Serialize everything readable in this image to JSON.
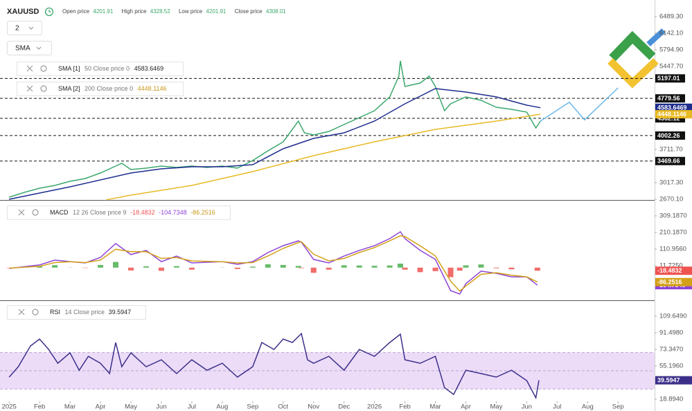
{
  "toolbar": {
    "symbol": "XAUUSD",
    "open_label": "Open price",
    "open": 4201.91,
    "high_label": "High price",
    "high": 4328.52,
    "low_label": "Low price",
    "low": 4201.91,
    "close_label": "Close price",
    "close": 4308.01,
    "interval": "2",
    "indicator": "SMA"
  },
  "chart_data": [
    {
      "type": "line",
      "xlim": [
        -0.3,
        21.2
      ],
      "ylim": [
        2655.6,
        6836.6
      ],
      "yticks": [
        {
          "value": 2670.1,
          "label": "2670.10"
        },
        {
          "value": 3017.3,
          "label": "3017.30"
        },
        {
          "value": 3711.7,
          "label": "3711.70"
        },
        {
          "value": 5447.7,
          "label": "5447.70"
        },
        {
          "value": 5794.9,
          "label": "5794.90"
        },
        {
          "value": 6142.1,
          "label": "6142.10"
        },
        {
          "value": 6489.3,
          "label": "6489.30"
        }
      ],
      "levels": [
        5197.01,
        4779.56,
        4362.12,
        4002.26,
        3469.66
      ],
      "level_color": "#111111",
      "series": [
        {
          "color": "#3aa76d",
          "x": [
            0,
            0.5,
            1,
            1.5,
            2,
            2.5,
            3,
            3.5,
            3.7,
            4,
            4.5,
            5,
            5.5,
            6,
            6.5,
            7,
            7.5,
            8,
            8.5,
            9,
            9.5,
            9.7,
            10,
            10.5,
            11,
            11.5,
            12,
            12.5,
            12.8,
            12.85,
            13,
            13.5,
            13.8,
            14,
            14.3,
            14.5,
            15,
            15.5,
            16,
            16.5,
            17,
            17.3,
            17.45
          ],
          "values": [
            2714,
            2815,
            2901,
            2959,
            3046,
            3104,
            3220,
            3364,
            3422,
            3292,
            3321,
            3364,
            3336,
            3364,
            3336,
            3364,
            3321,
            3480,
            3683,
            3871,
            4305,
            4059,
            4016,
            4088,
            4232,
            4377,
            4522,
            4811,
            5245,
            5563,
            5028,
            5101,
            5245,
            5028,
            4522,
            4667,
            4811,
            4739,
            4594,
            4551,
            4493,
            4160,
            4305
          ]
        },
        {
          "color": "#6bb8e8",
          "x": [
            17.45,
            18.4,
            18.9,
            20.0
          ],
          "values": [
            4305,
            4700,
            4330,
            5000
          ]
        },
        {
          "name": "SMA [1]",
          "params": "50 Close price 0",
          "color": "#1c2c8e",
          "last_tag": true,
          "x": [
            0,
            2,
            4,
            5,
            6,
            7,
            8,
            9,
            10,
            11,
            12,
            13,
            14,
            15,
            16,
            17,
            17.45
          ],
          "values": [
            2670,
            2930,
            3220,
            3307,
            3350,
            3350,
            3393,
            3726,
            3943,
            4059,
            4305,
            4667,
            4985,
            4912,
            4811,
            4638,
            4583.6469
          ]
        },
        {
          "name": "SMA [2]",
          "params": "200 Close price 0",
          "color": "#e8b923",
          "last_tag": true,
          "x": [
            3.2,
            4,
            6,
            8,
            10,
            12,
            14,
            16,
            17.45
          ],
          "values": [
            2660,
            2757,
            2959,
            3249,
            3582,
            3871,
            4131,
            4305,
            4448.1146
          ]
        }
      ]
    },
    {
      "type": "line",
      "title": "MACD",
      "params": "12 26 Close price 9",
      "xlim": [
        -0.3,
        21.2
      ],
      "ylim": [
        -195,
        400
      ],
      "yticks": [
        {
          "value": 11.725,
          "label": "11.7250"
        },
        {
          "value": 110.956,
          "label": "110.9560"
        },
        {
          "value": 210.187,
          "label": "210.1870"
        },
        {
          "value": 309.187,
          "label": "309.1870"
        }
      ],
      "series": [
        {
          "style": "bar",
          "color": "#4caf50",
          "negative_color": "#ef5350",
          "last_tag": true,
          "x": [
            0,
            1,
            1.5,
            2,
            2.5,
            3,
            3.5,
            4,
            4.5,
            5,
            5.5,
            6,
            7,
            7.5,
            8,
            8.5,
            9,
            9.5,
            9.6,
            10,
            10.5,
            11,
            11.5,
            12,
            12.5,
            12.85,
            13,
            13.5,
            14,
            14.5,
            14.8,
            15,
            15.5,
            16,
            16.5,
            17,
            17.35
          ],
          "values": [
            -2,
            8,
            15,
            1,
            -2,
            16,
            34,
            -17,
            8,
            -19,
            9,
            -12,
            1,
            -8,
            6,
            20,
            16,
            10,
            -3,
            -31,
            -12,
            14,
            13,
            11,
            13,
            24,
            -12,
            -27,
            -21,
            -57,
            -18,
            14,
            19,
            -4,
            -10,
            0,
            -18.4832
          ]
        },
        {
          "color": "#8e44d6",
          "last_tag": true,
          "x": [
            0,
            1,
            1.5,
            2,
            2.5,
            3,
            3.5,
            4,
            4.5,
            5,
            5.5,
            6,
            7,
            7.5,
            8,
            8.5,
            9,
            9.5,
            9.6,
            10,
            10.5,
            11,
            11.5,
            12,
            12.5,
            12.85,
            13,
            13.5,
            14,
            14.5,
            14.8,
            15,
            15.5,
            16,
            16.5,
            17,
            17.35
          ],
          "values": [
            -5,
            16,
            45,
            36,
            28,
            61,
            144,
            78,
            103,
            36,
            69,
            28,
            36,
            20,
            36,
            90,
            131,
            160,
            152,
            49,
            28,
            69,
            103,
            131,
            173,
            214,
            173,
            103,
            49,
            -137,
            -158,
            -96,
            -21,
            -34,
            -55,
            -55,
            -104.7348
          ]
        },
        {
          "color": "#d4a017",
          "last_tag": true,
          "x": [
            0,
            1,
            1.5,
            2,
            2.5,
            3,
            3.5,
            4,
            4.5,
            5,
            5.5,
            6,
            7,
            7.5,
            8,
            8.5,
            9,
            9.5,
            9.6,
            10,
            10.5,
            11,
            11.5,
            12,
            12.5,
            12.85,
            13,
            13.5,
            14,
            14.5,
            14.8,
            15,
            15.5,
            16,
            16.5,
            17,
            17.35
          ],
          "values": [
            -3,
            8,
            30,
            35,
            30,
            45,
            110,
            95,
            95,
            55,
            60,
            40,
            35,
            28,
            30,
            70,
            115,
            150,
            155,
            80,
            40,
            55,
            90,
            120,
            160,
            190,
            185,
            130,
            70,
            -80,
            -140,
            -110,
            -40,
            -30,
            -45,
            -55,
            -86.2516
          ]
        }
      ]
    },
    {
      "type": "line",
      "title": "RSI",
      "params": "14 Close price",
      "xlim": [
        -0.3,
        21.2
      ],
      "ylim": [
        16.6,
        126.3
      ],
      "yticks": [
        {
          "value": 18.894,
          "label": "18.8940"
        },
        {
          "value": 55.196,
          "label": "55.1960"
        },
        {
          "value": 73.347,
          "label": "73.3470"
        },
        {
          "value": 91.498,
          "label": "91.4980"
        },
        {
          "value": 109.649,
          "label": "109.6490"
        }
      ],
      "bands": [
        30,
        70
      ],
      "band_color": "#ecdcf8",
      "midline": 50,
      "xticks": [
        {
          "value": 0,
          "label": "2025"
        },
        {
          "value": 1,
          "label": "Feb"
        },
        {
          "value": 2,
          "label": "Mar"
        },
        {
          "value": 3,
          "label": "Apr"
        },
        {
          "value": 4,
          "label": "May"
        },
        {
          "value": 5,
          "label": "Jun"
        },
        {
          "value": 6,
          "label": "Jul"
        },
        {
          "value": 7,
          "label": "Aug"
        },
        {
          "value": 8,
          "label": "Sep"
        },
        {
          "value": 9,
          "label": "Oct"
        },
        {
          "value": 10,
          "label": "Nov"
        },
        {
          "value": 11,
          "label": "Dec"
        },
        {
          "value": 12,
          "label": "2026"
        },
        {
          "value": 13,
          "label": "Feb"
        },
        {
          "value": 14,
          "label": "Mar"
        },
        {
          "value": 15,
          "label": "Apr"
        },
        {
          "value": 16,
          "label": "May"
        },
        {
          "value": 17,
          "label": "Jun"
        },
        {
          "value": 18,
          "label": "Jul"
        },
        {
          "value": 19,
          "label": "Aug"
        },
        {
          "value": 20,
          "label": "Sep"
        }
      ],
      "series": [
        {
          "color": "#3b2f8a",
          "last_tag": true,
          "x": [
            0,
            0.3,
            0.7,
            1,
            1.3,
            1.6,
            2,
            2.3,
            2.6,
            3,
            3.3,
            3.5,
            3.7,
            4,
            4.5,
            5,
            5.5,
            6,
            6.5,
            7,
            7.5,
            8,
            8.3,
            8.7,
            9,
            9.3,
            9.6,
            9.8,
            10,
            10.5,
            11,
            11.5,
            12,
            12.5,
            12.85,
            13,
            13.5,
            14,
            14.3,
            14.6,
            15,
            15.5,
            16,
            16.5,
            17,
            17.3,
            17.4
          ],
          "values": [
            43.1,
            54.4,
            77.1,
            84.7,
            73.3,
            58.2,
            69.6,
            50.6,
            65.8,
            58.2,
            46.9,
            80.9,
            54.4,
            69.6,
            54.4,
            62,
            46.9,
            62,
            50.6,
            58.2,
            43.1,
            54.4,
            80.9,
            73.3,
            84.7,
            80.9,
            90.7,
            62,
            58.2,
            65.8,
            50.6,
            73.3,
            65.8,
            80.9,
            90,
            62,
            58.2,
            65.8,
            31.6,
            24.1,
            50.6,
            46.9,
            43.1,
            50.6,
            39.3,
            20.4,
            39.5947
          ]
        }
      ]
    }
  ]
}
